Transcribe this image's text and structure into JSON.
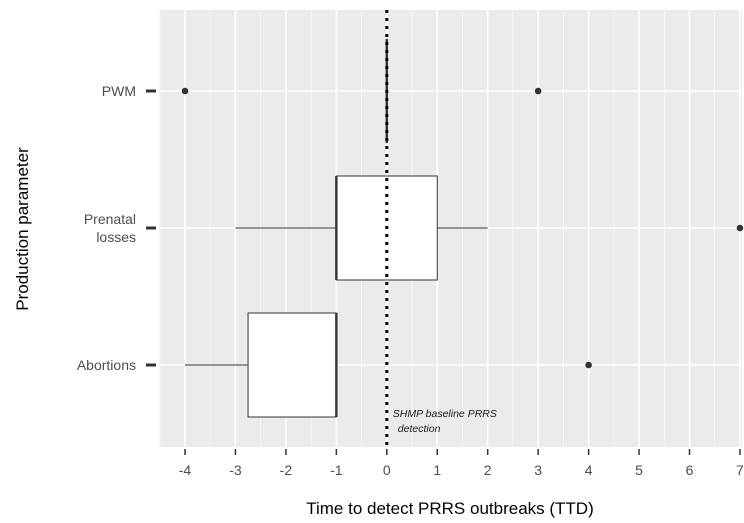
{
  "chart_data": {
    "type": "boxplot",
    "orientation": "horizontal",
    "xlabel": "Time to detect PRRS outbreaks (TTD)",
    "ylabel": "Production parameter",
    "xlim": [
      -4.5,
      7.05
    ],
    "x_ticks": [
      -4,
      -3,
      -2,
      -1,
      0,
      1,
      2,
      3,
      4,
      5,
      6,
      7
    ],
    "grid": true,
    "categories": [
      {
        "label_lines": [
          "PWM"
        ]
      },
      {
        "label_lines": [
          "Prenatal",
          "losses"
        ]
      },
      {
        "label_lines": [
          "Abortions"
        ]
      }
    ],
    "boxes": [
      {
        "category": "PWM",
        "whisker_low": 0,
        "q1": 0,
        "median": 0,
        "q3": 0,
        "whisker_high": 0,
        "outliers": [
          -4,
          3
        ]
      },
      {
        "category": "Prenatal losses",
        "whisker_low": -3,
        "q1": -1,
        "median": -1,
        "q3": 1,
        "whisker_high": 2,
        "outliers": [
          7
        ]
      },
      {
        "category": "Abortions",
        "whisker_low": -4,
        "q1": -2.75,
        "median": -1,
        "q3": -1,
        "whisker_high": -1,
        "outliers": [
          4
        ]
      }
    ],
    "reference_line": {
      "x": 0,
      "style": "dotted",
      "label_lines": [
        "SHMP baseline PRRS",
        "detection"
      ]
    }
  }
}
